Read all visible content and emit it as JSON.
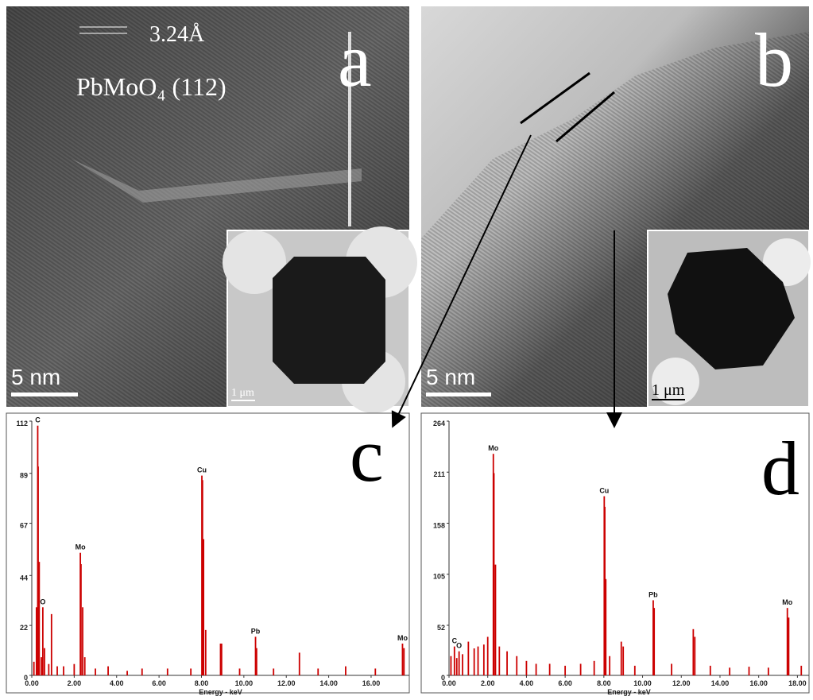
{
  "panels": {
    "a": {
      "label": "a",
      "spacing": "3.24Å",
      "plane": "PbMoO₄ (112)",
      "scale": "5 nm",
      "inset_scale": "1 μm"
    },
    "b": {
      "label": "b",
      "scale": "5 nm",
      "inset_scale": "1 μm"
    }
  },
  "chart_data": [
    {
      "type": "bar",
      "label": "c",
      "x_label": "Energy - keV",
      "color": "#cc0000",
      "xlim": [
        0,
        17.8
      ],
      "ylim": [
        0,
        112
      ],
      "yticks": [
        0,
        22,
        44,
        67,
        89,
        112
      ],
      "xticks": [
        {
          "value": 0,
          "label": "0.00"
        },
        {
          "value": 2,
          "label": "2.00"
        },
        {
          "value": 4,
          "label": "4.00"
        },
        {
          "value": 6,
          "label": "6.00"
        },
        {
          "value": 8,
          "label": "8.00"
        },
        {
          "value": 10,
          "label": "10.00"
        },
        {
          "value": 12,
          "label": "12.00"
        },
        {
          "value": 14,
          "label": "14.00"
        },
        {
          "value": 16,
          "label": "16.00"
        }
      ],
      "x": [
        0.1,
        0.22,
        0.28,
        0.3,
        0.35,
        0.45,
        0.52,
        0.6,
        0.8,
        0.93,
        1.2,
        1.5,
        2.0,
        2.29,
        2.32,
        2.4,
        2.5,
        3.0,
        3.6,
        4.5,
        5.2,
        6.4,
        7.5,
        8.02,
        8.05,
        8.1,
        8.2,
        8.9,
        8.95,
        9.8,
        10.55,
        10.6,
        11.4,
        12.62,
        13.5,
        14.8,
        16.2,
        17.48,
        17.55
      ],
      "values": [
        6,
        30,
        110,
        92,
        50,
        8,
        30,
        12,
        5,
        27,
        4,
        4,
        5,
        54,
        49,
        30,
        8,
        3,
        4,
        2,
        3,
        3,
        3,
        88,
        86,
        60,
        20,
        14,
        14,
        3,
        17,
        12,
        3,
        10,
        3,
        4,
        3,
        14,
        12
      ],
      "peak_labels": [
        {
          "text": "C",
          "x": 0.28
        },
        {
          "text": "O",
          "x": 0.52
        },
        {
          "text": "Mo",
          "x": 2.29
        },
        {
          "text": "Cu",
          "x": 8.02
        },
        {
          "text": "Pb",
          "x": 10.55
        },
        {
          "text": "Mo",
          "x": 17.48
        }
      ]
    },
    {
      "type": "bar",
      "label": "d",
      "x_label": "Energy - keV",
      "color": "#cc0000",
      "xlim": [
        0,
        18.6
      ],
      "ylim": [
        0,
        264
      ],
      "yticks": [
        0,
        52,
        105,
        158,
        211,
        264
      ],
      "xticks": [
        {
          "value": 0,
          "label": "0.00"
        },
        {
          "value": 2,
          "label": "2.00"
        },
        {
          "value": 4,
          "label": "4.00"
        },
        {
          "value": 6,
          "label": "6.00"
        },
        {
          "value": 8,
          "label": "8.00"
        },
        {
          "value": 10,
          "label": "10.00"
        },
        {
          "value": 12,
          "label": "12.00"
        },
        {
          "value": 14,
          "label": "14.00"
        },
        {
          "value": 16,
          "label": "16.00"
        },
        {
          "value": 18,
          "label": "18.00"
        }
      ],
      "x": [
        0.1,
        0.28,
        0.4,
        0.52,
        0.7,
        1.0,
        1.3,
        1.5,
        1.8,
        2.0,
        2.29,
        2.32,
        2.4,
        2.6,
        3.0,
        3.5,
        4.0,
        4.5,
        5.2,
        6.0,
        6.8,
        7.5,
        8.02,
        8.05,
        8.1,
        8.3,
        8.9,
        9.0,
        9.6,
        10.55,
        10.6,
        11.5,
        12.62,
        12.7,
        13.5,
        14.5,
        15.5,
        16.5,
        17.48,
        17.55,
        18.2
      ],
      "values": [
        20,
        30,
        18,
        25,
        22,
        35,
        28,
        30,
        32,
        40,
        230,
        210,
        115,
        30,
        25,
        20,
        15,
        12,
        12,
        10,
        12,
        15,
        186,
        175,
        100,
        20,
        35,
        30,
        10,
        78,
        70,
        12,
        48,
        40,
        10,
        8,
        9,
        8,
        70,
        60,
        10
      ],
      "peak_labels": [
        {
          "text": "C",
          "x": 0.28
        },
        {
          "text": "O",
          "x": 0.52
        },
        {
          "text": "Mo",
          "x": 2.29
        },
        {
          "text": "Cu",
          "x": 8.02
        },
        {
          "text": "Pb",
          "x": 10.55
        },
        {
          "text": "Mo",
          "x": 17.48
        }
      ]
    }
  ]
}
